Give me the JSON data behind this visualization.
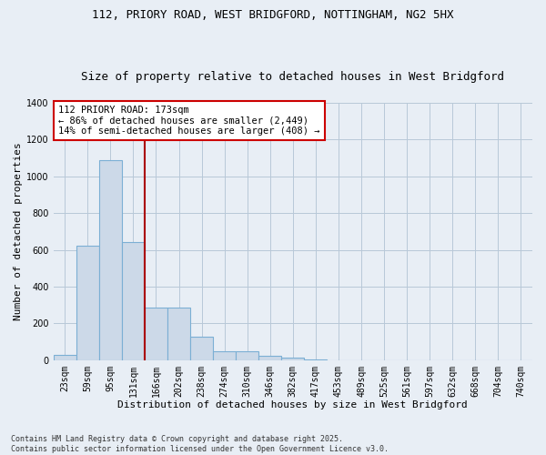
{
  "title1": "112, PRIORY ROAD, WEST BRIDGFORD, NOTTINGHAM, NG2 5HX",
  "title2": "Size of property relative to detached houses in West Bridgford",
  "xlabel": "Distribution of detached houses by size in West Bridgford",
  "ylabel": "Number of detached properties",
  "categories": [
    "23sqm",
    "59sqm",
    "95sqm",
    "131sqm",
    "166sqm",
    "202sqm",
    "238sqm",
    "274sqm",
    "310sqm",
    "346sqm",
    "382sqm",
    "417sqm",
    "453sqm",
    "489sqm",
    "525sqm",
    "561sqm",
    "597sqm",
    "632sqm",
    "668sqm",
    "704sqm",
    "740sqm"
  ],
  "values": [
    30,
    625,
    1090,
    640,
    285,
    285,
    125,
    50,
    50,
    25,
    15,
    5,
    0,
    0,
    0,
    0,
    0,
    0,
    0,
    0,
    0
  ],
  "bar_color": "#ccd9e8",
  "bar_edge_color": "#7bafd4",
  "vline_x": 3.5,
  "vline_color": "#aa0000",
  "annotation_text": "112 PRIORY ROAD: 173sqm\n← 86% of detached houses are smaller (2,449)\n14% of semi-detached houses are larger (408) →",
  "annotation_box_color": "#ffffff",
  "annotation_box_edge_color": "#cc0000",
  "ylim": [
    0,
    1400
  ],
  "yticks": [
    0,
    200,
    400,
    600,
    800,
    1000,
    1200,
    1400
  ],
  "bg_color": "#e8eef5",
  "plot_bg_color": "#e8eef5",
  "footer1": "Contains HM Land Registry data © Crown copyright and database right 2025.",
  "footer2": "Contains public sector information licensed under the Open Government Licence v3.0.",
  "title1_fontsize": 9,
  "title2_fontsize": 9,
  "axis_fontsize": 8,
  "tick_fontsize": 7,
  "annot_fontsize": 7.5
}
